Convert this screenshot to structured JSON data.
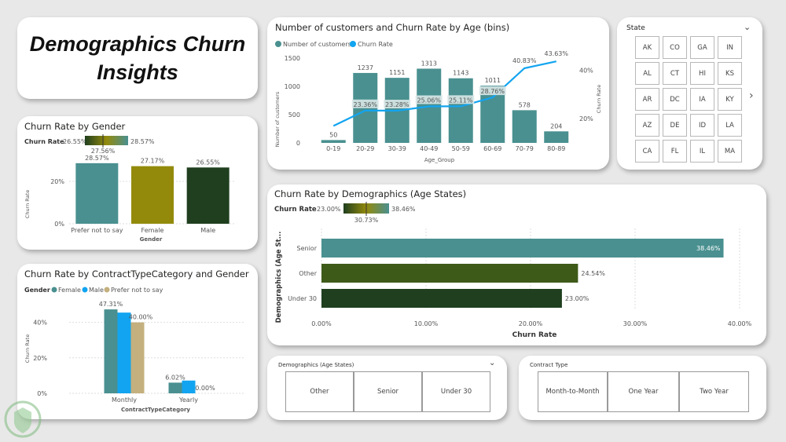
{
  "title": {
    "line1": "Demographics Churn",
    "line2": "Insights"
  },
  "age_chart": {
    "title": "Number of customers and Churn Rate by Age (bins)",
    "legend": [
      "Number of customers",
      "Churn Rate"
    ],
    "y_left_label": "Number of customers",
    "y_right_label": "Churn Rate",
    "x_label": "Age_Group",
    "y_ticks": [
      "0",
      "500",
      "1000",
      "1500"
    ],
    "y2_ticks": [
      "20%",
      "40%"
    ]
  },
  "state_slicer": {
    "title": "State",
    "states": [
      "AK",
      "CO",
      "GA",
      "IN",
      "AL",
      "CT",
      "HI",
      "KS",
      "AR",
      "DC",
      "IA",
      "KY",
      "AZ",
      "DE",
      "ID",
      "LA",
      "CA",
      "FL",
      "IL",
      "MA"
    ]
  },
  "gender_chart": {
    "title": "Churn Rate by Gender",
    "legend_label": "Churn Rate",
    "grad_min": "26.55%",
    "grad_mid": "27.56%",
    "grad_max": "28.57%",
    "y_label": "Churn Rate",
    "x_label": "Gender",
    "y_ticks": [
      "0%",
      "20%"
    ]
  },
  "contract_chart": {
    "title": "Churn Rate by ContractTypeCategory and Gender",
    "legend_title": "Gender",
    "legend": [
      "Female",
      "Male",
      "Prefer not to say"
    ],
    "y_label": "Churn Rate",
    "x_label": "ContractTypeCategory",
    "y_ticks": [
      "0%",
      "20%",
      "40%"
    ]
  },
  "demo_chart": {
    "title": "Churn Rate by Demographics (Age States)",
    "legend_label": "Churn Rate",
    "grad_min": "23.00%",
    "grad_mid": "30.73%",
    "grad_max": "38.46%",
    "y_label": "Demographics (Age St...",
    "x_label": "Churn Rate",
    "x_ticks": [
      "0.00%",
      "10.00%",
      "20.00%",
      "30.00%",
      "40.00%"
    ]
  },
  "demo_slicer": {
    "title": "Demographics (Age States)",
    "options": [
      "Other",
      "Senior",
      "Under 30"
    ]
  },
  "contract_slicer": {
    "title": "Contract Type",
    "options": [
      "Month-to-Month",
      "One Year",
      "Two Year"
    ]
  },
  "colors": {
    "teal": "#4a9090",
    "olive": "#938a0c",
    "darkgreen": "#1f3f1f",
    "blue": "#12a4f0",
    "tan": "#c4b07e",
    "mid": "#3e5a19"
  },
  "chart_data": [
    {
      "type": "bar",
      "title": "Number of customers and Churn Rate by Age (bins)",
      "xlabel": "Age_Group",
      "ylabel": "Number of customers",
      "categories": [
        "0-19",
        "20-29",
        "30-39",
        "40-49",
        "50-59",
        "60-69",
        "70-79",
        "80-89"
      ],
      "series": [
        {
          "name": "Number of customers",
          "type": "bar",
          "values": [
            50,
            1237,
            1151,
            1313,
            1143,
            1011,
            578,
            204
          ],
          "labels": [
            "50",
            "1237",
            "1151",
            "1313",
            "1143",
            "1011",
            "578",
            "204"
          ]
        },
        {
          "name": "Churn Rate",
          "type": "line",
          "values": [
            17.0,
            23.36,
            23.28,
            25.06,
            25.11,
            28.76,
            40.83,
            43.63
          ],
          "labels": [
            "",
            "23.36%",
            "23.28%",
            "25.06%",
            "25.11%",
            "28.76%",
            "40.83%",
            "43.63%"
          ]
        }
      ],
      "ylim": [
        0,
        1500
      ],
      "y2lim": [
        10,
        45
      ]
    },
    {
      "type": "bar",
      "title": "Churn Rate by Gender",
      "xlabel": "Gender",
      "ylabel": "Churn Rate",
      "categories": [
        "Prefer not to say",
        "Female",
        "Male"
      ],
      "values": [
        28.57,
        27.17,
        26.55
      ],
      "labels": [
        "28.57%",
        "27.17%",
        "26.55%"
      ],
      "ylim": [
        0,
        30
      ]
    },
    {
      "type": "bar",
      "title": "Churn Rate by ContractTypeCategory and Gender",
      "xlabel": "ContractTypeCategory",
      "ylabel": "Churn Rate",
      "categories": [
        "Monthly",
        "Yearly"
      ],
      "series": [
        {
          "name": "Female",
          "values": [
            47.31,
            6.02
          ],
          "labels": [
            "47.31%",
            "6.02%"
          ]
        },
        {
          "name": "Male",
          "values": [
            45.5,
            7.2
          ],
          "labels": [
            "",
            ""
          ]
        },
        {
          "name": "Prefer not to say",
          "values": [
            40.0,
            0.0
          ],
          "labels": [
            "40.00%",
            "0.00%"
          ]
        }
      ],
      "ylim": [
        0,
        50
      ]
    },
    {
      "type": "bar",
      "title": "Churn Rate by Demographics (Age States)",
      "xlabel": "Churn Rate",
      "ylabel": "Demographics (Age St...",
      "categories": [
        "Senior",
        "Other",
        "Under 30"
      ],
      "values": [
        38.46,
        24.54,
        23.0
      ],
      "labels": [
        "38.46%",
        "24.54%",
        "23.00%"
      ],
      "xlim": [
        0,
        40
      ]
    }
  ]
}
